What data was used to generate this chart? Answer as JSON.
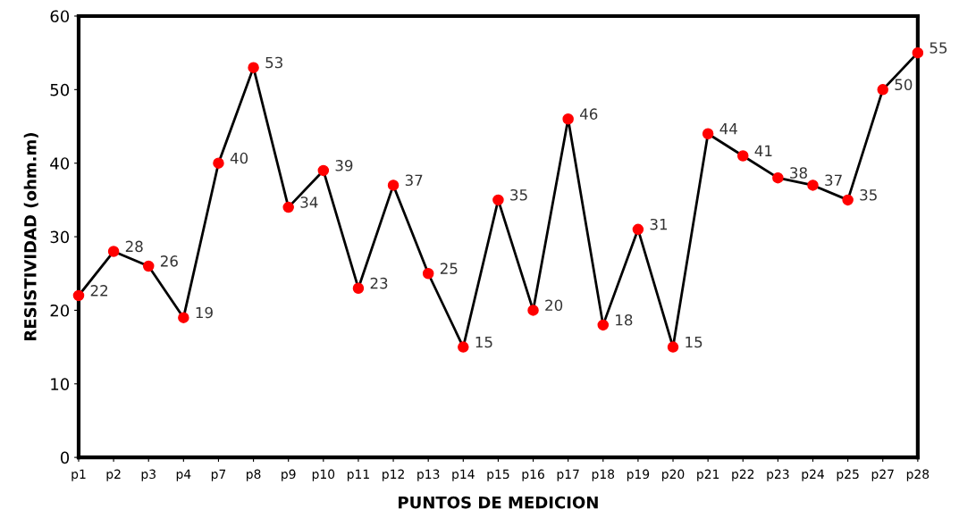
{
  "chart_data": {
    "type": "line",
    "xlabel": "PUNTOS DE MEDICION",
    "ylabel": "RESISTIVIDAD (ohm.m)",
    "categories": [
      "p1",
      "p2",
      "p3",
      "p4",
      "p7",
      "p8",
      "p9",
      "p10",
      "p11",
      "p12",
      "p13",
      "p14",
      "p15",
      "p16",
      "p17",
      "p18",
      "p19",
      "p20",
      "p21",
      "p22",
      "p23",
      "p24",
      "p25",
      "p27",
      "p28"
    ],
    "series": [
      {
        "color": "#ff0000",
        "values": [
          22,
          28,
          26,
          19,
          40,
          53,
          34,
          39,
          23,
          37,
          25,
          15,
          35,
          20,
          46,
          18,
          31,
          15,
          44,
          41,
          38,
          37,
          35,
          50,
          55
        ]
      }
    ],
    "ylim": [
      0,
      60
    ],
    "yticks": [
      0,
      10,
      20,
      30,
      40,
      50,
      60
    ],
    "data_labels": true,
    "grid": false,
    "legend": false,
    "marker": "circle",
    "line_style": "solid"
  }
}
